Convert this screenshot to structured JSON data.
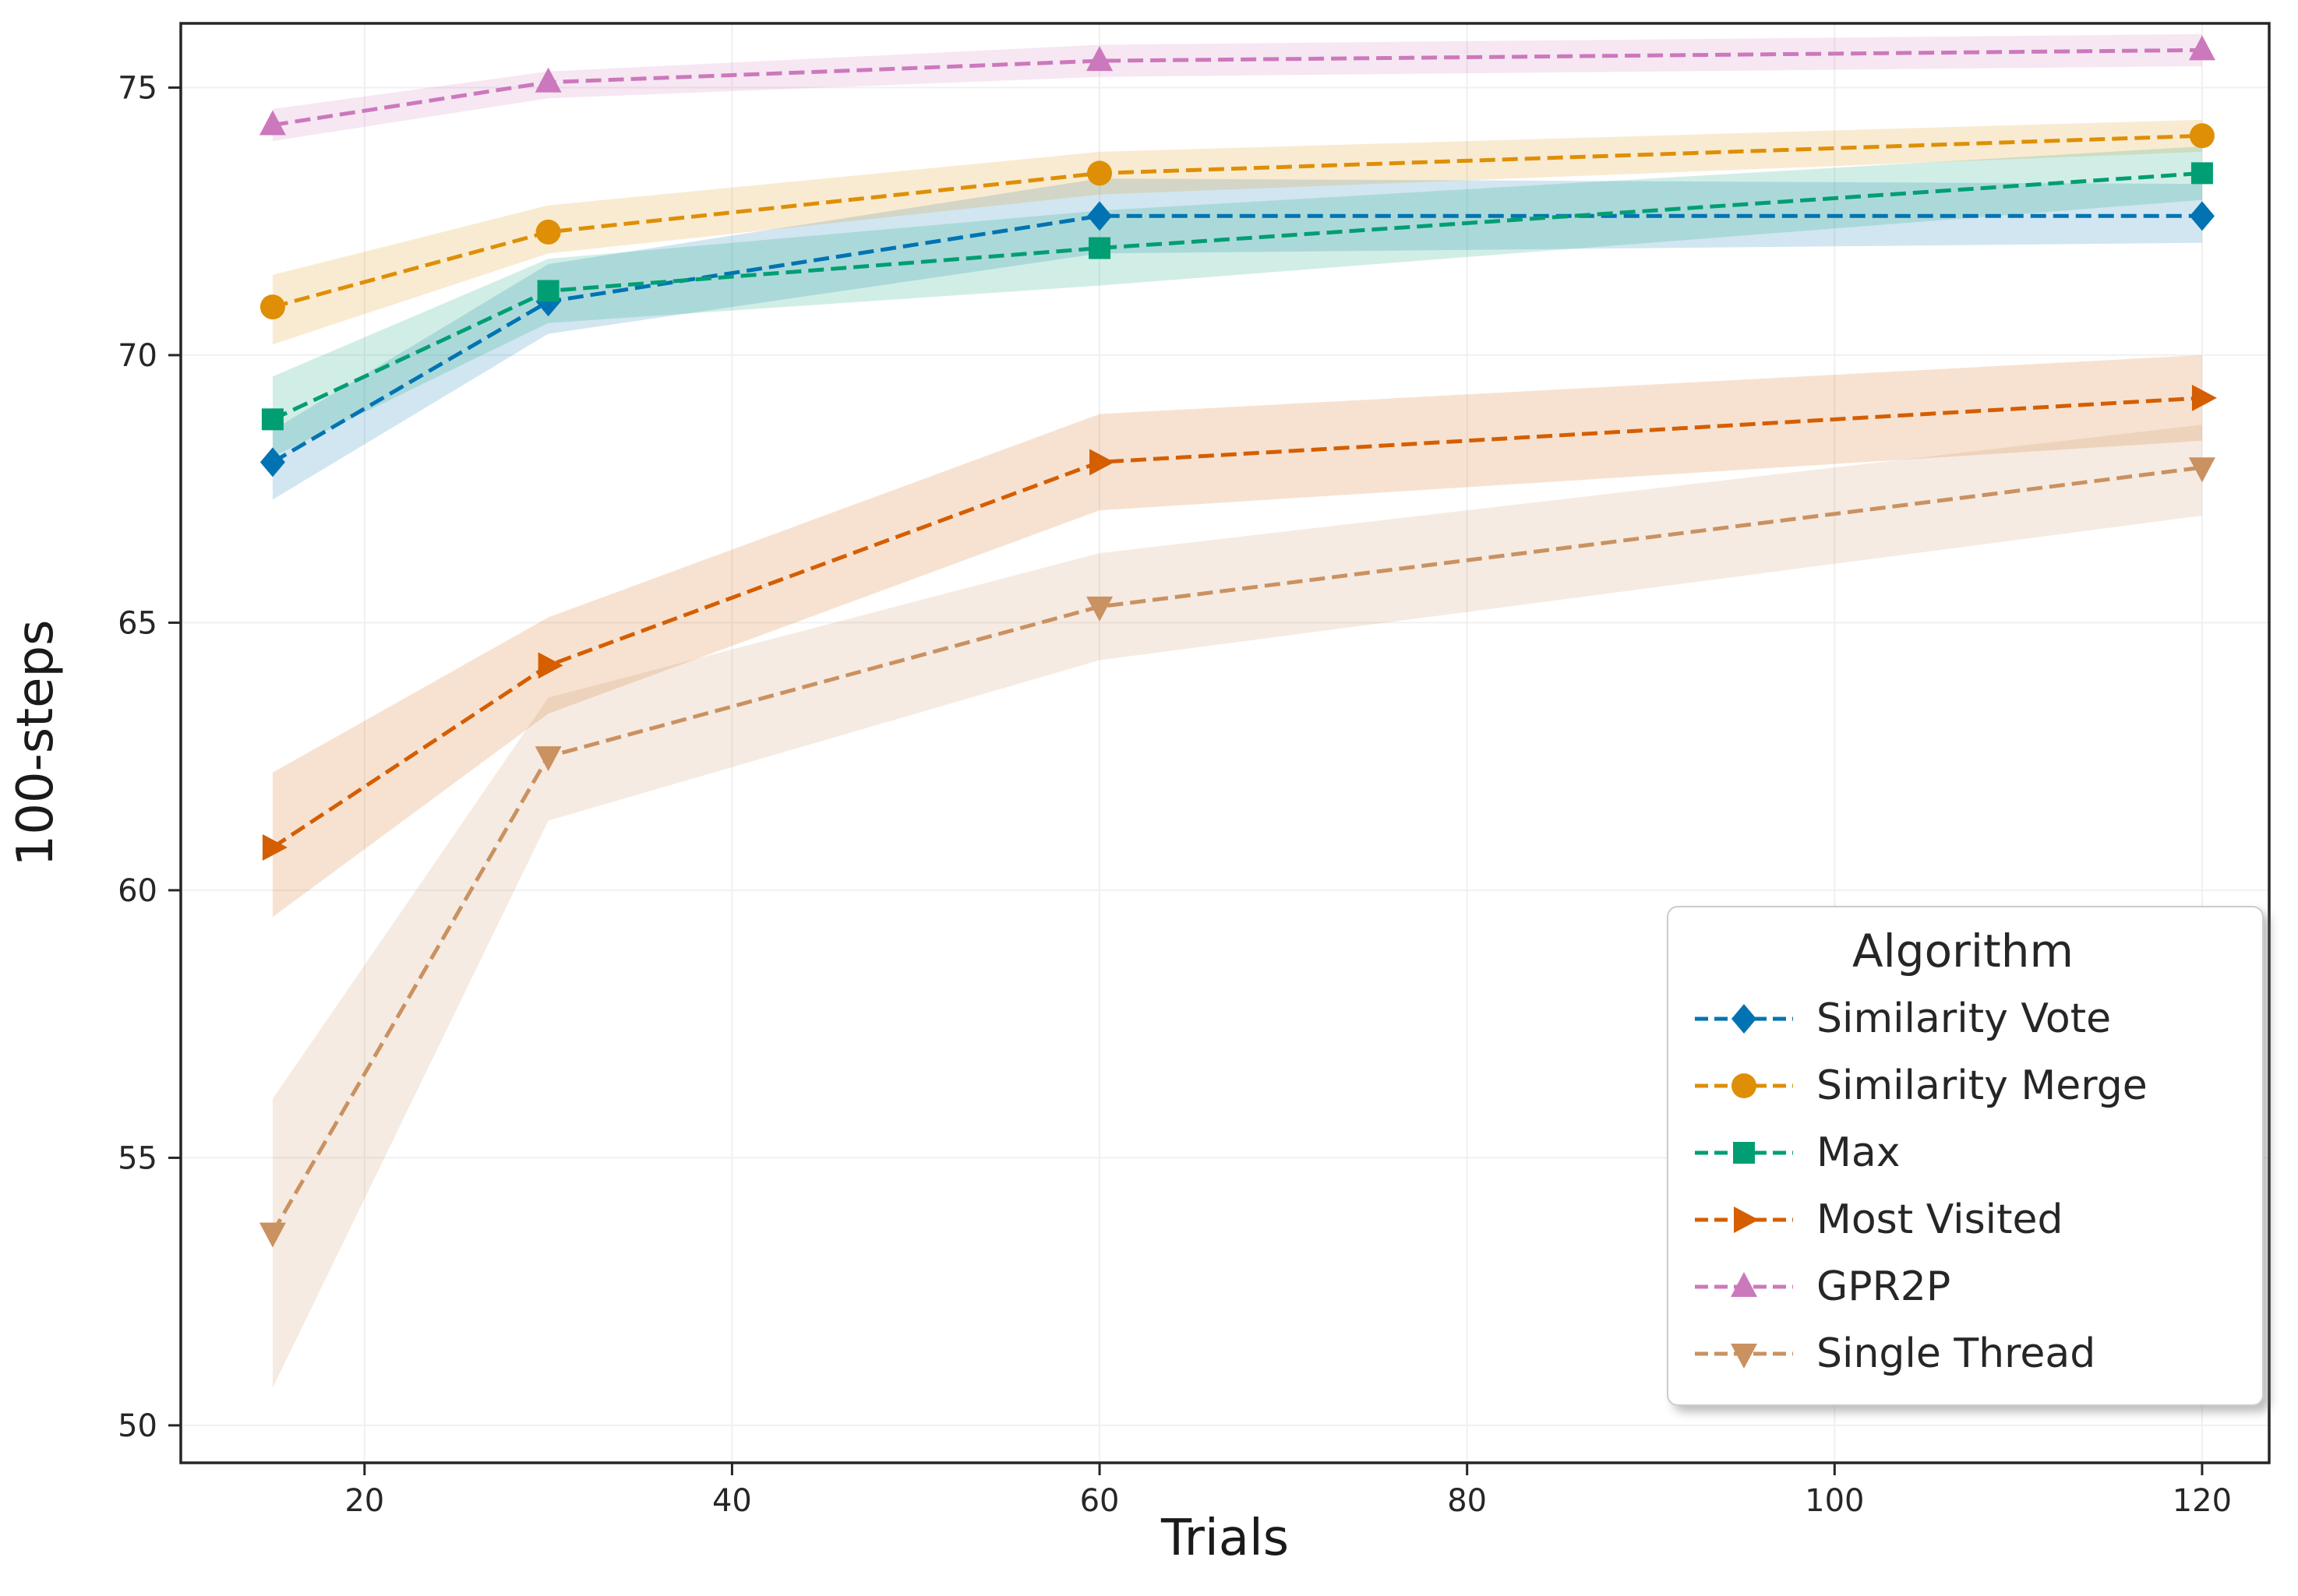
{
  "figure": {
    "background": "#ffffff",
    "spine_color": "#262626",
    "tick_label_color": "#262626",
    "grid_color": "#f0f0f0"
  },
  "chart_data": {
    "type": "line",
    "title": "",
    "xlabel": "Trials",
    "ylabel": "100-steps",
    "x": [
      15,
      30,
      60,
      120
    ],
    "xlim": [
      10.0,
      123.65
    ],
    "ylim": [
      49.3,
      76.2
    ],
    "xticks": [
      20,
      40,
      60,
      80,
      100,
      120
    ],
    "yticks": [
      50,
      55,
      60,
      65,
      70,
      75
    ],
    "grid": true,
    "line_style": "dashed",
    "legend": {
      "title": "Algorithm",
      "position": "lower right"
    },
    "series": [
      {
        "name": "Similarity Vote",
        "color": "#0173b2",
        "marker": "diamond",
        "values": [
          68.0,
          71.0,
          72.6,
          72.6
        ],
        "band_low": [
          67.3,
          70.4,
          71.9,
          72.1
        ],
        "band_high": [
          68.6,
          71.7,
          73.3,
          73.2
        ]
      },
      {
        "name": "Similarity Merge",
        "color": "#de8f05",
        "marker": "circle",
        "values": [
          70.9,
          72.3,
          73.4,
          74.1
        ],
        "band_low": [
          70.2,
          71.9,
          73.0,
          73.8
        ],
        "band_high": [
          71.5,
          72.8,
          73.8,
          74.4
        ]
      },
      {
        "name": "Max",
        "color": "#029e73",
        "marker": "square",
        "values": [
          68.8,
          71.2,
          72.0,
          73.4
        ],
        "band_low": [
          68.1,
          70.6,
          71.3,
          72.9
        ],
        "band_high": [
          69.6,
          71.8,
          72.7,
          73.9
        ]
      },
      {
        "name": "Most Visited",
        "color": "#d55e00",
        "marker": "triangle-right",
        "values": [
          60.8,
          64.2,
          68.0,
          69.2
        ],
        "band_low": [
          59.5,
          63.3,
          67.1,
          68.4
        ],
        "band_high": [
          62.2,
          65.1,
          68.9,
          70.0
        ]
      },
      {
        "name": "GPR2P",
        "color": "#cc78bc",
        "marker": "triangle-up",
        "values": [
          74.3,
          75.1,
          75.5,
          75.7
        ],
        "band_low": [
          74.0,
          74.8,
          75.2,
          75.4
        ],
        "band_high": [
          74.6,
          75.3,
          75.8,
          76.0
        ]
      },
      {
        "name": "Single Thread",
        "color": "#ca9161",
        "marker": "triangle-down",
        "values": [
          53.6,
          62.5,
          65.3,
          67.9
        ],
        "band_low": [
          50.7,
          61.3,
          64.3,
          67.0
        ],
        "band_high": [
          56.1,
          63.6,
          66.3,
          68.7
        ]
      }
    ]
  }
}
